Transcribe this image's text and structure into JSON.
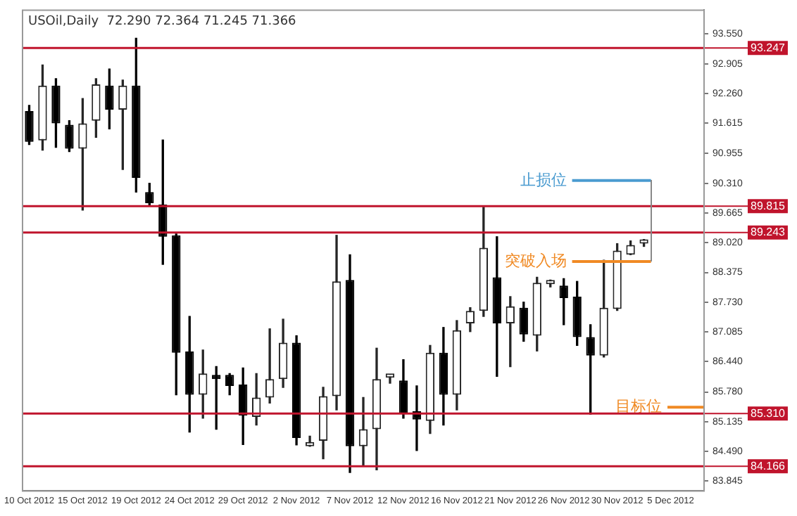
{
  "chart_data": {
    "type": "candlestick",
    "title": "USOil,Daily  72.290 72.364 71.245 71.366",
    "categories": [
      "10 Oct 2012",
      null,
      null,
      null,
      "15 Oct 2012",
      null,
      null,
      null,
      "19 Oct 2012",
      null,
      null,
      null,
      "24 Oct 2012",
      null,
      null,
      null,
      "29 Oct 2012",
      null,
      null,
      null,
      "2 Nov 2012",
      null,
      null,
      null,
      "7 Nov 2012",
      null,
      null,
      null,
      "12 Nov 2012",
      null,
      null,
      null,
      "16 Nov 2012",
      null,
      null,
      null,
      "21 Nov 2012",
      null,
      null,
      null,
      "26 Nov 2012",
      null,
      null,
      null,
      "30 Nov 2012",
      null,
      null,
      null,
      "5 Dec 2012",
      null,
      null
    ],
    "ohlc": [
      [
        91.88,
        92.0,
        91.15,
        91.21
      ],
      [
        91.24,
        92.88,
        91.03,
        92.43
      ],
      [
        92.43,
        92.58,
        91.09,
        91.61
      ],
      [
        91.58,
        91.67,
        91.0,
        91.06
      ],
      [
        91.06,
        92.15,
        89.73,
        91.61
      ],
      [
        91.67,
        92.58,
        91.31,
        92.46
      ],
      [
        92.43,
        92.79,
        91.49,
        91.91
      ],
      [
        91.91,
        92.55,
        90.61,
        92.43
      ],
      [
        92.43,
        93.46,
        90.12,
        90.43
      ],
      [
        90.12,
        90.31,
        89.82,
        89.88
      ],
      [
        89.85,
        91.25,
        88.55,
        89.15
      ],
      [
        89.18,
        89.21,
        85.72,
        86.63
      ],
      [
        86.66,
        87.42,
        84.91,
        85.72
      ],
      [
        85.72,
        86.69,
        85.21,
        86.18
      ],
      [
        86.09,
        86.33,
        84.97,
        86.06
      ],
      [
        86.15,
        86.18,
        85.72,
        85.91
      ],
      [
        85.94,
        86.3,
        84.64,
        85.27
      ],
      [
        85.24,
        86.18,
        85.06,
        85.66
      ],
      [
        85.66,
        87.15,
        85.54,
        86.06
      ],
      [
        86.06,
        87.36,
        85.88,
        86.85
      ],
      [
        86.85,
        87.0,
        84.63,
        84.78
      ],
      [
        84.6,
        84.82,
        84.6,
        84.69
      ],
      [
        84.72,
        85.88,
        84.33,
        85.69
      ],
      [
        85.69,
        89.18,
        85.39,
        88.18
      ],
      [
        88.21,
        88.76,
        84.03,
        84.6
      ],
      [
        84.6,
        85.66,
        84.18,
        84.97
      ],
      [
        84.97,
        86.73,
        84.09,
        86.06
      ],
      [
        86.09,
        86.15,
        85.97,
        86.12
      ],
      [
        86.03,
        86.48,
        85.21,
        85.3
      ],
      [
        85.36,
        85.91,
        84.51,
        85.18
      ],
      [
        85.15,
        86.79,
        84.88,
        86.63
      ],
      [
        86.63,
        87.18,
        85.06,
        85.72
      ],
      [
        85.72,
        87.33,
        85.39,
        87.12
      ],
      [
        87.27,
        87.61,
        87.09,
        87.54
      ],
      [
        87.54,
        89.79,
        87.42,
        88.91
      ],
      [
        88.27,
        89.15,
        86.12,
        87.27
      ],
      [
        87.27,
        87.85,
        86.33,
        87.64
      ],
      [
        87.61,
        87.73,
        86.88,
        87.03
      ],
      [
        87.0,
        88.27,
        86.67,
        88.15
      ],
      [
        88.12,
        88.21,
        88.06,
        88.15
      ],
      [
        88.09,
        88.24,
        87.24,
        87.82
      ],
      [
        87.85,
        88.18,
        86.79,
        86.97
      ],
      [
        86.97,
        87.24,
        85.3,
        86.57
      ],
      [
        86.57,
        88.64,
        86.54,
        87.61
      ],
      [
        87.58,
        89.0,
        87.55,
        88.85
      ],
      [
        88.76,
        89.06,
        88.76,
        88.97
      ],
      [
        89.0,
        89.09,
        88.94,
        89.03
      ],
      null,
      null,
      null,
      null
    ],
    "ylim": [
      83.63,
      94.07
    ],
    "yticks": [
      {
        "value": 93.55,
        "label": "93.550"
      },
      {
        "value": 92.905,
        "label": "92.905"
      },
      {
        "value": 92.26,
        "label": "92.260"
      },
      {
        "value": 91.615,
        "label": "91.615"
      },
      {
        "value": 90.955,
        "label": "90.955"
      },
      {
        "value": 90.31,
        "label": "90.310"
      },
      {
        "value": 89.665,
        "label": "89.665"
      },
      {
        "value": 89.02,
        "label": "89.020"
      },
      {
        "value": 88.375,
        "label": "88.375"
      },
      {
        "value": 87.73,
        "label": "87.730"
      },
      {
        "value": 87.085,
        "label": "87.085"
      },
      {
        "value": 86.44,
        "label": "86.440"
      },
      {
        "value": 85.78,
        "label": "85.780"
      },
      {
        "value": 85.135,
        "label": "85.135"
      },
      {
        "value": 84.49,
        "label": "84.490"
      },
      {
        "value": 83.845,
        "label": "83.845"
      }
    ],
    "ref_lines": [
      {
        "axis": "y",
        "value": 93.247,
        "label": "93.247",
        "color": "#c0142c"
      },
      {
        "axis": "y",
        "value": 89.815,
        "label": "89.815",
        "color": "#c0142c"
      },
      {
        "axis": "y",
        "value": 89.243,
        "label": "89.243",
        "color": "#c0142c"
      },
      {
        "axis": "y",
        "value": 85.31,
        "label": "85.310",
        "color": "#c0142c"
      },
      {
        "axis": "y",
        "value": 84.166,
        "label": "84.166",
        "color": "#c0142c"
      },
      {
        "axis": "y",
        "value": 90.37,
        "label": "止损位",
        "color": "#4a9bd0"
      },
      {
        "axis": "y",
        "value": 88.61,
        "label": "突破入场",
        "color": "#f08a24"
      },
      {
        "axis": "y",
        "value": 85.45,
        "label": "目标位",
        "color": "#f08a24"
      }
    ],
    "grid": false,
    "legend": false
  }
}
